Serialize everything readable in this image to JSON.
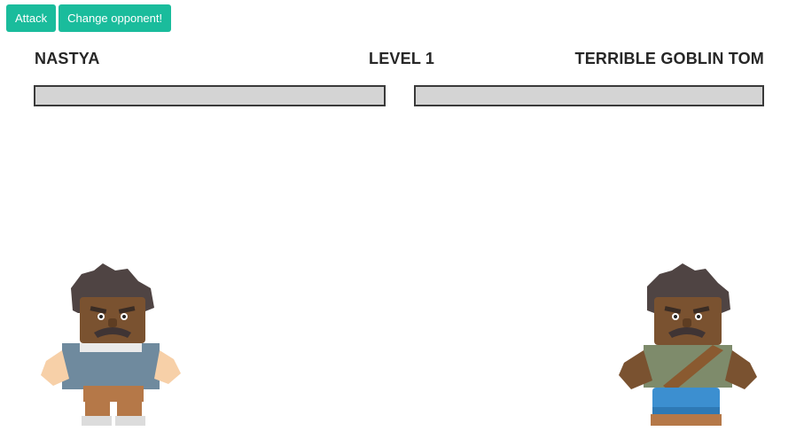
{
  "toolbar": {
    "attack_label": "Attack",
    "change_opponent_label": "Change opponent!"
  },
  "hud": {
    "player_name": "NASTYA",
    "level_label": "LEVEL 1",
    "opponent_name": "TERRIBLE GOBLIN TOM"
  },
  "player": {
    "sprite": "hero-character",
    "hp_fraction": 1.0,
    "colors": {
      "skin": "#7a5230",
      "hair": "#4f4443",
      "shirt": "#6f8a9e",
      "pants": "#b57848",
      "hands": "#f7d0a8",
      "shoes": "#dcdcdc"
    }
  },
  "opponent": {
    "sprite": "goblin-character",
    "hp_fraction": 1.0,
    "colors": {
      "skin": "#7a5230",
      "hair": "#4f4443",
      "shirt": "#7e8b6b",
      "strap": "#8a5a30",
      "pants": "#3c8fd0",
      "shoes": "#b57848"
    }
  },
  "colors": {
    "accent": "#1abc9c",
    "hp_track": "#d4d4d4",
    "hp_border": "#3a3a3a"
  }
}
